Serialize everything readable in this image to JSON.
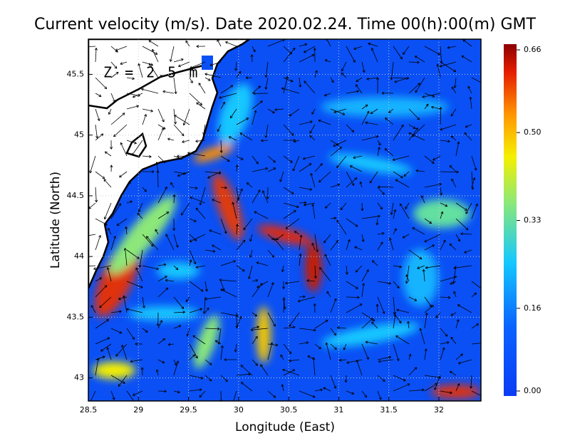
{
  "chart_data": {
    "type": "heatmap",
    "title": "Current velocity (m/s). Date 2020.02.24. Time 00(h):00(m) GMT",
    "annotation": "Z = 2.5 m",
    "xlabel": "Longitude (East)",
    "ylabel": "Latitude (North)",
    "xlim": [
      28.5,
      32.42
    ],
    "ylim": [
      42.81,
      45.79
    ],
    "xticks": [
      28.5,
      29,
      29.5,
      30,
      30.5,
      31,
      31.5,
      32
    ],
    "yticks": [
      43,
      43.5,
      44,
      44.5,
      45,
      45.5
    ],
    "grid": true,
    "colorbar": {
      "lim": [
        0,
        0.66
      ],
      "ticks": [
        {
          "value": 0,
          "label": "0.00"
        },
        0.16,
        0.33,
        {
          "value": 0.5,
          "label": "0.50"
        },
        0.66
      ]
    }
  }
}
